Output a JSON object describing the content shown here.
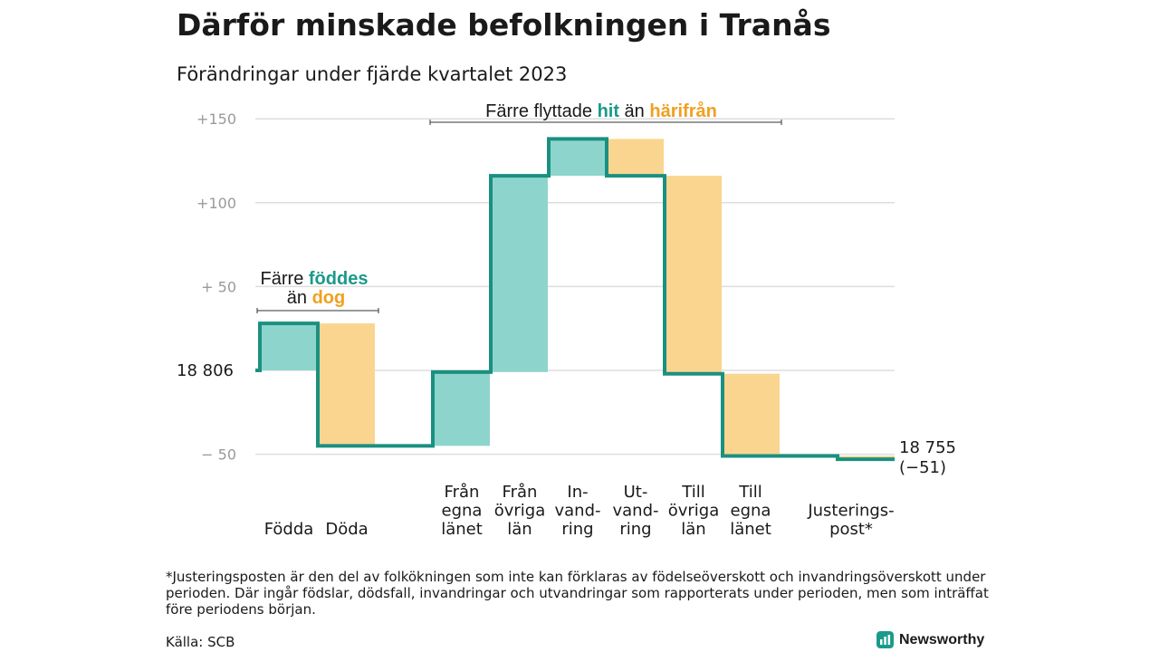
{
  "header": {
    "title": "Därför minskade befolkningen i Tranås",
    "subtitle": "Förändringar under fjärde kvartalet 2023"
  },
  "colors": {
    "increase": "#8dd5cc",
    "decrease": "#fad590",
    "step_line": "#1a9080",
    "accent_teal": "#1a9a8a",
    "accent_orange": "#f0a020",
    "grid": "#dddddd"
  },
  "chart_data": {
    "type": "waterfall",
    "y_ticks": [
      {
        "value": 150,
        "label": "+150"
      },
      {
        "value": 100,
        "label": "+100"
      },
      {
        "value": 50,
        "label": "+  50"
      },
      {
        "value": 0,
        "label": "18  806"
      },
      {
        "value": -50,
        "label": "−  50"
      }
    ],
    "ylim": [
      -58,
      150
    ],
    "start_label": "18  806",
    "end_label_lines": [
      "18 755",
      "(−51)"
    ],
    "bars": [
      {
        "label_lines": [
          "Födda"
        ],
        "delta": 28
      },
      {
        "label_lines": [
          "Döda"
        ],
        "delta": -73
      },
      {
        "label_lines": [
          "Från",
          "egna",
          "länet"
        ],
        "delta": 44
      },
      {
        "label_lines": [
          "Från",
          "övriga",
          "län"
        ],
        "delta": 117
      },
      {
        "label_lines": [
          "In-",
          "vand-",
          "ring"
        ],
        "delta": 22
      },
      {
        "label_lines": [
          "Ut-",
          "vand-",
          "ring"
        ],
        "delta": -22
      },
      {
        "label_lines": [
          "Till",
          "övriga",
          "län"
        ],
        "delta": -118
      },
      {
        "label_lines": [
          "Till",
          "egna",
          "länet"
        ],
        "delta": -49
      },
      {
        "label_lines": [
          "Justerings-",
          "post*"
        ],
        "delta": -2
      }
    ],
    "annotations": {
      "births": {
        "line1_prefix": "Färre ",
        "line1_highlight": "föddes",
        "line2_prefix": "än ",
        "line2_highlight": "dog"
      },
      "migration": {
        "prefix": "Färre flyttade ",
        "highlight1": "hit",
        "middle": " än ",
        "highlight2": "härifrån"
      }
    }
  },
  "footnote": "*Justeringsposten är den del av folkökningen som inte kan förklaras av födelseöverskott och invandringsöverskott under perioden. Där ingår födslar, dödsfall, invandringar och utvandringar som rapporterats under perioden, men som inträffat före periodens början.",
  "source": "Källa: SCB",
  "brand": {
    "name": "Newsworthy",
    "icon": "bar-chart-icon"
  }
}
